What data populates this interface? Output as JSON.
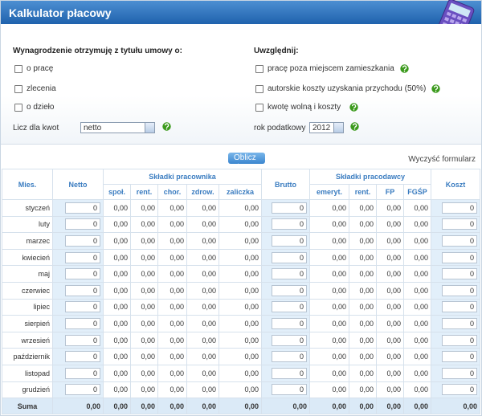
{
  "header": {
    "title": "Kalkulator płacowy"
  },
  "form": {
    "left_heading": "Wynagrodzenie otrzymuję z tytułu umowy o:",
    "contract_options": [
      "o pracę",
      "zlecenia",
      "o dzieło"
    ],
    "amount_label": "Licz dla kwot",
    "amount_select": "netto",
    "right_heading": "Uwzględnij:",
    "include_options": [
      "pracę poza miejscem zamieszkania",
      "autorskie koszty uzyskania przychodu (50%)",
      "kwotę wolną i koszty"
    ],
    "tax_year_label": "rok podatkowy",
    "tax_year_select": "2012"
  },
  "actions": {
    "calculate": "Oblicz",
    "clear": "Wyczyść formularz"
  },
  "table": {
    "headers": [
      "Mies.",
      "Netto",
      "Składki pracownika",
      "Brutto",
      "Składki pracodawcy",
      "Koszt"
    ],
    "employee_columns": [
      "społ.",
      "rent.",
      "chor.",
      "zdrow.",
      "zaliczka"
    ],
    "employer_columns": [
      "emeryt.",
      "rent.",
      "FP",
      "FGŚP"
    ],
    "rows": [
      [
        "styczeń",
        "0",
        "0,00",
        "0,00",
        "0,00",
        "0,00",
        "0,00",
        "0",
        "0,00",
        "0,00",
        "0,00",
        "0,00",
        "0"
      ],
      [
        "luty",
        "0",
        "0,00",
        "0,00",
        "0,00",
        "0,00",
        "0,00",
        "0",
        "0,00",
        "0,00",
        "0,00",
        "0,00",
        "0"
      ],
      [
        "marzec",
        "0",
        "0,00",
        "0,00",
        "0,00",
        "0,00",
        "0,00",
        "0",
        "0,00",
        "0,00",
        "0,00",
        "0,00",
        "0"
      ],
      [
        "kwiecień",
        "0",
        "0,00",
        "0,00",
        "0,00",
        "0,00",
        "0,00",
        "0",
        "0,00",
        "0,00",
        "0,00",
        "0,00",
        "0"
      ],
      [
        "maj",
        "0",
        "0,00",
        "0,00",
        "0,00",
        "0,00",
        "0,00",
        "0",
        "0,00",
        "0,00",
        "0,00",
        "0,00",
        "0"
      ],
      [
        "czerwiec",
        "0",
        "0,00",
        "0,00",
        "0,00",
        "0,00",
        "0,00",
        "0",
        "0,00",
        "0,00",
        "0,00",
        "0,00",
        "0"
      ],
      [
        "lipiec",
        "0",
        "0,00",
        "0,00",
        "0,00",
        "0,00",
        "0,00",
        "0",
        "0,00",
        "0,00",
        "0,00",
        "0,00",
        "0"
      ],
      [
        "sierpień",
        "0",
        "0,00",
        "0,00",
        "0,00",
        "0,00",
        "0,00",
        "0",
        "0,00",
        "0,00",
        "0,00",
        "0,00",
        "0"
      ],
      [
        "wrzesień",
        "0",
        "0,00",
        "0,00",
        "0,00",
        "0,00",
        "0,00",
        "0",
        "0,00",
        "0,00",
        "0,00",
        "0,00",
        "0"
      ],
      [
        "październik",
        "0",
        "0,00",
        "0,00",
        "0,00",
        "0,00",
        "0,00",
        "0",
        "0,00",
        "0,00",
        "0,00",
        "0,00",
        "0"
      ],
      [
        "listopad",
        "0",
        "0,00",
        "0,00",
        "0,00",
        "0,00",
        "0,00",
        "0",
        "0,00",
        "0,00",
        "0,00",
        "0,00",
        "0"
      ],
      [
        "grudzień",
        "0",
        "0,00",
        "0,00",
        "0,00",
        "0,00",
        "0,00",
        "0",
        "0,00",
        "0,00",
        "0,00",
        "0,00",
        "0"
      ]
    ],
    "total": [
      "Suma",
      "0,00",
      "0,00",
      "0,00",
      "0,00",
      "0,00",
      "0,00",
      "0,00",
      "0,00",
      "0,00",
      "0,00",
      "0,00",
      "0,00"
    ]
  }
}
